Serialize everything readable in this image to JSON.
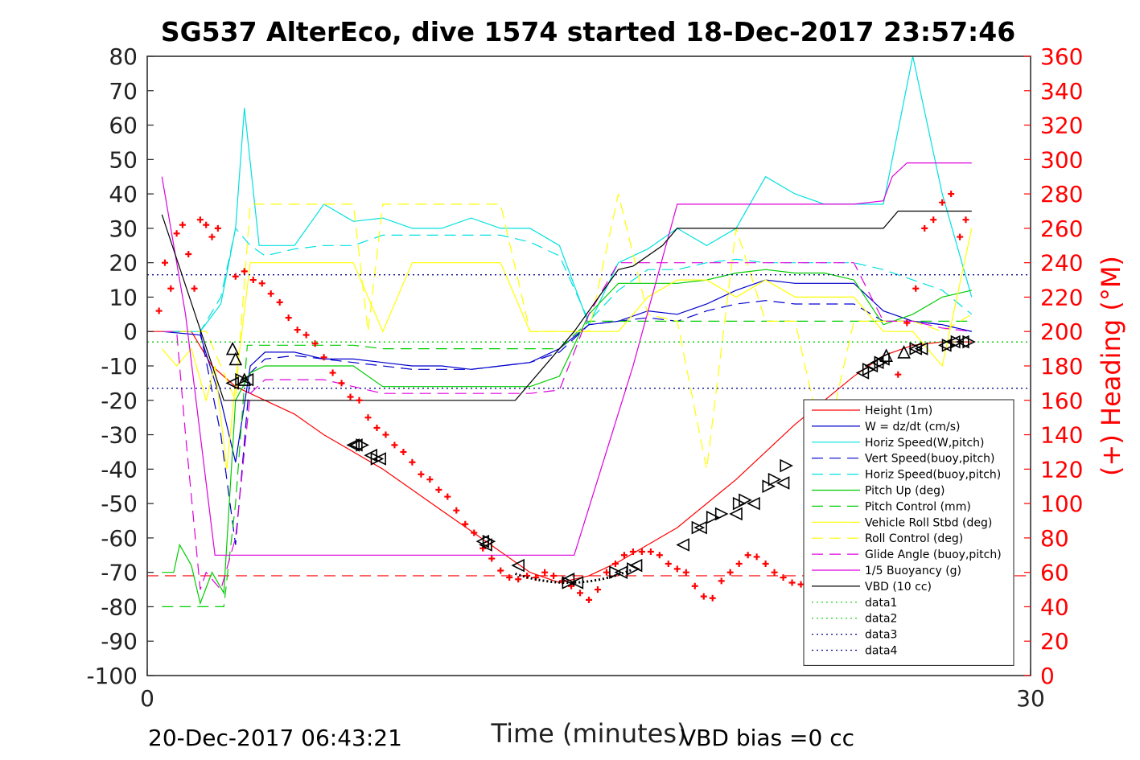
{
  "chart_data": {
    "type": "line",
    "title": "SG537 AlterEco, dive 1574 started 18-Dec-2017 23:57:46",
    "xlabel": "Time (minutes)",
    "ylabel_right": "(+) Heading (°M)",
    "xlim": [
      0,
      30
    ],
    "ylim": [
      -100,
      80
    ],
    "ylim_right": [
      0,
      360
    ],
    "x_ticks": [
      "0",
      "30"
    ],
    "y_ticks": [
      "80",
      "70",
      "60",
      "50",
      "40",
      "30",
      "20",
      "10",
      "0",
      "-10",
      "-20",
      "-30",
      "-40",
      "-50",
      "-60",
      "-70",
      "-80",
      "-90",
      "-100"
    ],
    "y_ticks_right": [
      "360",
      "340",
      "320",
      "300",
      "280",
      "260",
      "240",
      "220",
      "200",
      "180",
      "160",
      "140",
      "120",
      "100",
      "80",
      "60",
      "40",
      "20",
      "0"
    ],
    "footer_left": "20-Dec-2017 06:43:21",
    "footer_right": "VBD bias =0 cc",
    "legend_position": "bottom-right",
    "series": [
      {
        "name": "Height (1m)",
        "color": "#ff0000",
        "style": "solid",
        "x": [
          0,
          1.5,
          2.2,
          3,
          4,
          5,
          6,
          7,
          8,
          9,
          10,
          11,
          12,
          13,
          14,
          15,
          16,
          17,
          18,
          19,
          20,
          21,
          22,
          23,
          24,
          25,
          26,
          27,
          28
        ],
        "y": [
          0,
          0,
          -10,
          -16,
          -20,
          -24,
          -30,
          -35,
          -40,
          -46,
          -52,
          -58,
          -64,
          -70,
          -73,
          -71,
          -67,
          -62,
          -57,
          -50,
          -43,
          -35,
          -27,
          -20,
          -13,
          -7,
          -4,
          -3,
          -3
        ]
      },
      {
        "name": "W = dz/dt (cm/s)",
        "color": "#0000cc",
        "style": "solid",
        "x": [
          0.5,
          1.8,
          2.5,
          3,
          3.5,
          4,
          5,
          6,
          7,
          8,
          9,
          10,
          11,
          12,
          13,
          14,
          15,
          16,
          17,
          18,
          19,
          20,
          21,
          22,
          23,
          24,
          25,
          26,
          27,
          28
        ],
        "y": [
          0,
          -1,
          -20,
          -38,
          -10,
          -6,
          -6,
          -8,
          -8,
          -9,
          -10,
          -10,
          -11,
          -10,
          -9,
          -5,
          2,
          3,
          6,
          5,
          8,
          12,
          15,
          14,
          14,
          14,
          6,
          3,
          2,
          0
        ]
      },
      {
        "name": "Horiz Speed(W,pitch)",
        "color": "#00e0e0",
        "style": "solid",
        "x": [
          0.5,
          1.8,
          2.5,
          3,
          3.3,
          3.8,
          5,
          6,
          7,
          8,
          9,
          10,
          11,
          12,
          13,
          14,
          15,
          16,
          17,
          18,
          19,
          20,
          21,
          22,
          23,
          24,
          25,
          26,
          27,
          28
        ],
        "y": [
          0,
          0,
          8,
          30,
          65,
          25,
          25,
          37,
          32,
          33,
          30,
          30,
          33,
          30,
          30,
          25,
          2,
          20,
          24,
          30,
          25,
          30,
          45,
          40,
          37,
          37,
          37,
          80,
          40,
          10
        ]
      },
      {
        "name": "Vert Speed(buoy,pitch)",
        "color": "#0000cc",
        "style": "dash",
        "x": [
          0.5,
          1.8,
          2.5,
          3,
          3.5,
          4,
          5,
          6,
          7,
          8,
          9,
          10,
          11,
          12,
          13,
          14,
          15,
          16,
          17,
          18,
          19,
          20,
          21,
          22,
          23,
          24,
          25,
          26,
          27,
          28
        ],
        "y": [
          0,
          0,
          -30,
          -62,
          -12,
          -8,
          -7,
          -8,
          -9,
          -10,
          -11,
          -11,
          -11,
          -10,
          -9,
          -6,
          2,
          3,
          4,
          3,
          6,
          8,
          9,
          8,
          8,
          8,
          3,
          3,
          2,
          0
        ]
      },
      {
        "name": "Horiz Speed(buoy,pitch)",
        "color": "#00e0e0",
        "style": "dash",
        "x": [
          0.5,
          1.8,
          2.5,
          3,
          3.5,
          4,
          5,
          6,
          7,
          8,
          9,
          10,
          11,
          12,
          13,
          14,
          15,
          16,
          17,
          18,
          19,
          20,
          21,
          22,
          23,
          24,
          25,
          26,
          27,
          28
        ],
        "y": [
          0,
          0,
          10,
          30,
          25,
          22,
          24,
          25,
          25,
          28,
          28,
          28,
          28,
          28,
          26,
          22,
          3,
          12,
          18,
          18,
          20,
          21,
          20,
          20,
          20,
          20,
          18,
          15,
          12,
          5
        ]
      },
      {
        "name": "Pitch Up (deg)",
        "color": "#00cc00",
        "style": "solid",
        "x": [
          0.5,
          0.9,
          1.1,
          1.5,
          1.8,
          2.2,
          2.6,
          3,
          3.5,
          4,
          5,
          6,
          7,
          8,
          9,
          10,
          11,
          12,
          13,
          14,
          15,
          16,
          17,
          18,
          19,
          20,
          21,
          22,
          23,
          24,
          25,
          26,
          27,
          28
        ],
        "y": [
          -70,
          -70,
          -62,
          -68,
          -79,
          -70,
          -76,
          -20,
          -12,
          -10,
          -10,
          -10,
          -10,
          -16,
          -16,
          -16,
          -16,
          -16,
          -16,
          -13,
          5,
          14,
          14,
          14,
          15,
          17,
          18,
          17,
          17,
          15,
          2,
          5,
          10,
          12
        ]
      },
      {
        "name": "Pitch Control (mm)",
        "color": "#00cc00",
        "style": "dash",
        "x": [
          0.5,
          2.6,
          3,
          3.4,
          5,
          6,
          7,
          8,
          9,
          10,
          11,
          12,
          13,
          14,
          15,
          16,
          17,
          18,
          19,
          20,
          21,
          22,
          23,
          24,
          25,
          26,
          27,
          28
        ],
        "y": [
          -80,
          -80,
          -50,
          -4,
          -4,
          -4,
          -4,
          -5,
          -5,
          -5,
          -5,
          -5,
          -5,
          -5,
          3,
          3,
          3,
          3,
          3,
          3,
          3,
          3,
          3,
          3,
          3,
          3,
          3,
          3
        ]
      },
      {
        "name": "Vehicle Roll Stbd (deg)",
        "color": "#ffff00",
        "style": "solid",
        "x": [
          0.5,
          1,
          1.5,
          2,
          2.3,
          2.7,
          3,
          3.5,
          4,
          5,
          6,
          7,
          8,
          9,
          10,
          11,
          12,
          13,
          14,
          15,
          16,
          17,
          18,
          19,
          20,
          21,
          22,
          23,
          24,
          25,
          26,
          27,
          28
        ],
        "y": [
          -5,
          -10,
          -5,
          -20,
          -10,
          -40,
          -15,
          20,
          20,
          20,
          20,
          20,
          0,
          20,
          20,
          20,
          20,
          0,
          0,
          0,
          0,
          10,
          15,
          15,
          10,
          15,
          10,
          10,
          10,
          0,
          0,
          -10,
          30
        ]
      },
      {
        "name": "Roll Control (deg)",
        "color": "#ffff00",
        "style": "dash",
        "x": [
          0.5,
          2,
          3,
          3.5,
          5,
          6,
          7,
          7.5,
          8,
          8.5,
          9,
          10,
          11,
          12,
          13,
          14,
          15,
          16,
          17,
          18,
          19,
          20,
          21,
          22,
          23,
          24,
          25,
          26,
          27,
          28
        ],
        "y": [
          0,
          0,
          -20,
          37,
          37,
          37,
          37,
          0,
          37,
          37,
          37,
          37,
          37,
          37,
          0,
          0,
          0,
          40,
          5,
          3,
          -40,
          30,
          3,
          3,
          -35,
          3,
          3,
          3,
          0,
          5
        ]
      },
      {
        "name": "Glide Angle (buoy,pitch)",
        "color": "#dd00dd",
        "style": "dash",
        "x": [
          0.5,
          1,
          1.3,
          1.8,
          2,
          2.5,
          3,
          3.5,
          4,
          5,
          6,
          7,
          8,
          9,
          10,
          11,
          12,
          13,
          14,
          15,
          16,
          17,
          18,
          19,
          20,
          21,
          22,
          23,
          24,
          25,
          26,
          27,
          28
        ],
        "y": [
          0,
          0,
          -30,
          -75,
          -70,
          -75,
          -60,
          -18,
          -14,
          -14,
          -14,
          -16,
          -18,
          -18,
          -18,
          -18,
          -18,
          -18,
          -17,
          5,
          20,
          20,
          20,
          20,
          20,
          20,
          20,
          20,
          20,
          3,
          3,
          1,
          0
        ]
      },
      {
        "name": "1/5 Buoyancy (g)",
        "color": "#dd00dd",
        "style": "solid",
        "x": [
          0.5,
          1.3,
          2.3,
          2.6,
          12.5,
          14.5,
          16.5,
          18,
          22,
          24,
          25,
          25.3,
          25.8,
          28
        ],
        "y": [
          45,
          5,
          -65,
          -65,
          -65,
          -65,
          -10,
          37,
          37,
          37,
          38,
          45,
          49,
          49
        ]
      },
      {
        "name": "VBD (10 cc)",
        "color": "#000000",
        "style": "solid",
        "x": [
          0.5,
          2.6,
          12.5,
          14.5,
          16,
          16.5,
          17.5,
          18,
          22,
          25,
          25.5,
          28
        ],
        "y": [
          34,
          -20,
          -20,
          0,
          18,
          19,
          25,
          30,
          30,
          30,
          35,
          35
        ]
      },
      {
        "name": "data1",
        "color": "#00cc00",
        "style": "dot",
        "x": [
          0,
          30
        ],
        "y": [
          -3,
          -3
        ]
      },
      {
        "name": "data2",
        "color": "#00cc00",
        "style": "dot",
        "x": [
          0,
          30
        ],
        "y": [
          -3,
          -3
        ]
      },
      {
        "name": "data3",
        "color": "#000088",
        "style": "dot",
        "x": [
          0,
          30
        ],
        "y": [
          16.5,
          16.5
        ]
      },
      {
        "name": "data4",
        "color": "#000088",
        "style": "dot",
        "x": [
          0,
          30
        ],
        "y": [
          -16.5,
          -16.5
        ]
      }
    ],
    "reference_lines": [
      {
        "color": "#ff0000",
        "style": "dash",
        "y": -71
      },
      {
        "color": "#000088",
        "style": "dot",
        "y": 16.5
      },
      {
        "color": "#000088",
        "style": "dot",
        "y": -16.5
      }
    ],
    "heading_points": {
      "color": "#ff0000",
      "marker": "+",
      "axis": "right",
      "x": [
        0.4,
        0.6,
        0.8,
        1,
        1.2,
        1.4,
        1.6,
        1.8,
        2,
        2.2,
        2.4,
        3,
        3.3,
        3.6,
        3.9,
        4.2,
        4.5,
        4.8,
        5.1,
        5.4,
        5.7,
        6,
        6.3,
        6.6,
        6.9,
        7.2,
        7.5,
        7.8,
        8.1,
        8.4,
        8.7,
        9,
        9.3,
        9.6,
        9.9,
        10.2,
        10.5,
        10.8,
        11.1,
        11.4,
        11.7,
        12,
        12.3,
        12.6,
        12.9,
        13.2,
        13.5,
        13.8,
        14.1,
        14.4,
        14.7,
        15,
        15.3,
        15.6,
        15.9,
        16.2,
        16.5,
        16.8,
        17.1,
        17.4,
        17.7,
        18,
        18.3,
        18.6,
        18.9,
        19.2,
        19.5,
        19.8,
        20.1,
        20.4,
        20.7,
        21,
        21.3,
        21.6,
        21.9,
        22.2,
        22.5,
        22.8,
        23.1,
        23.4,
        23.7,
        24,
        24.3,
        24.6,
        24.9,
        25.2,
        25.5,
        25.8,
        26.1,
        26.4,
        26.7,
        27,
        27.3,
        27.6,
        27.8
      ],
      "y": [
        212,
        240,
        225,
        257,
        262,
        245,
        225,
        265,
        262,
        255,
        260,
        232,
        235,
        230,
        228,
        222,
        217,
        208,
        201,
        198,
        193,
        185,
        176,
        170,
        162,
        160,
        150,
        144,
        140,
        134,
        130,
        124,
        117,
        114,
        108,
        104,
        96,
        88,
        83,
        74,
        68,
        61,
        57,
        56,
        58,
        57,
        60,
        58,
        55,
        52,
        48,
        44,
        50,
        60,
        65,
        70,
        72,
        72,
        72,
        70,
        65,
        62,
        60,
        52,
        46,
        45,
        55,
        60,
        65,
        70,
        69,
        65,
        60,
        57,
        54,
        53,
        53,
        55,
        58,
        62,
        68,
        75,
        90,
        102,
        130,
        155,
        175,
        205,
        225,
        260,
        265,
        275,
        280,
        255,
        265
      ]
    },
    "markers": [
      {
        "type": "triangle-up",
        "x": [
          2.9,
          3.0,
          3.3,
          25.1,
          25.7
        ],
        "y": [
          -5,
          -8,
          -14,
          -7,
          -6
        ]
      },
      {
        "type": "triangle-left",
        "x": [
          2.9,
          3.4,
          7,
          7.1,
          7.6,
          7.9,
          11.4,
          11.5,
          12.6,
          14.3,
          14.6,
          16.1,
          16.6,
          18.2,
          18.8,
          20,
          20.6,
          21.6,
          23.1,
          24.3,
          24.6,
          24.8,
          25,
          26.1,
          26.3,
          27.1,
          27.4,
          27.7
        ],
        "y": [
          -15,
          -14,
          -33,
          -33,
          -36,
          -37,
          -61,
          -62,
          -68,
          -72,
          -73,
          -70,
          -68,
          -62,
          -57,
          -53,
          -50,
          -44,
          -39,
          -12,
          -10,
          -9,
          -8,
          -5,
          -5,
          -4,
          -3,
          -3
        ]
      },
      {
        "type": "triangle-right",
        "x": [
          3.2,
          7.3,
          7.8,
          11.6,
          14.3,
          15.9,
          16.5,
          18.7,
          19.2,
          19.5,
          20.1,
          20.3,
          21.1,
          21.3,
          21.7,
          24.5,
          24.9,
          26.1,
          27.2,
          27.5,
          27.9
        ],
        "y": [
          -14,
          -33,
          -37,
          -61,
          -73,
          -70,
          -69,
          -57,
          -54,
          -53,
          -50,
          -49,
          -45,
          -43,
          -39,
          -11,
          -9,
          -5,
          -4,
          -3,
          -3
        ]
      }
    ]
  }
}
